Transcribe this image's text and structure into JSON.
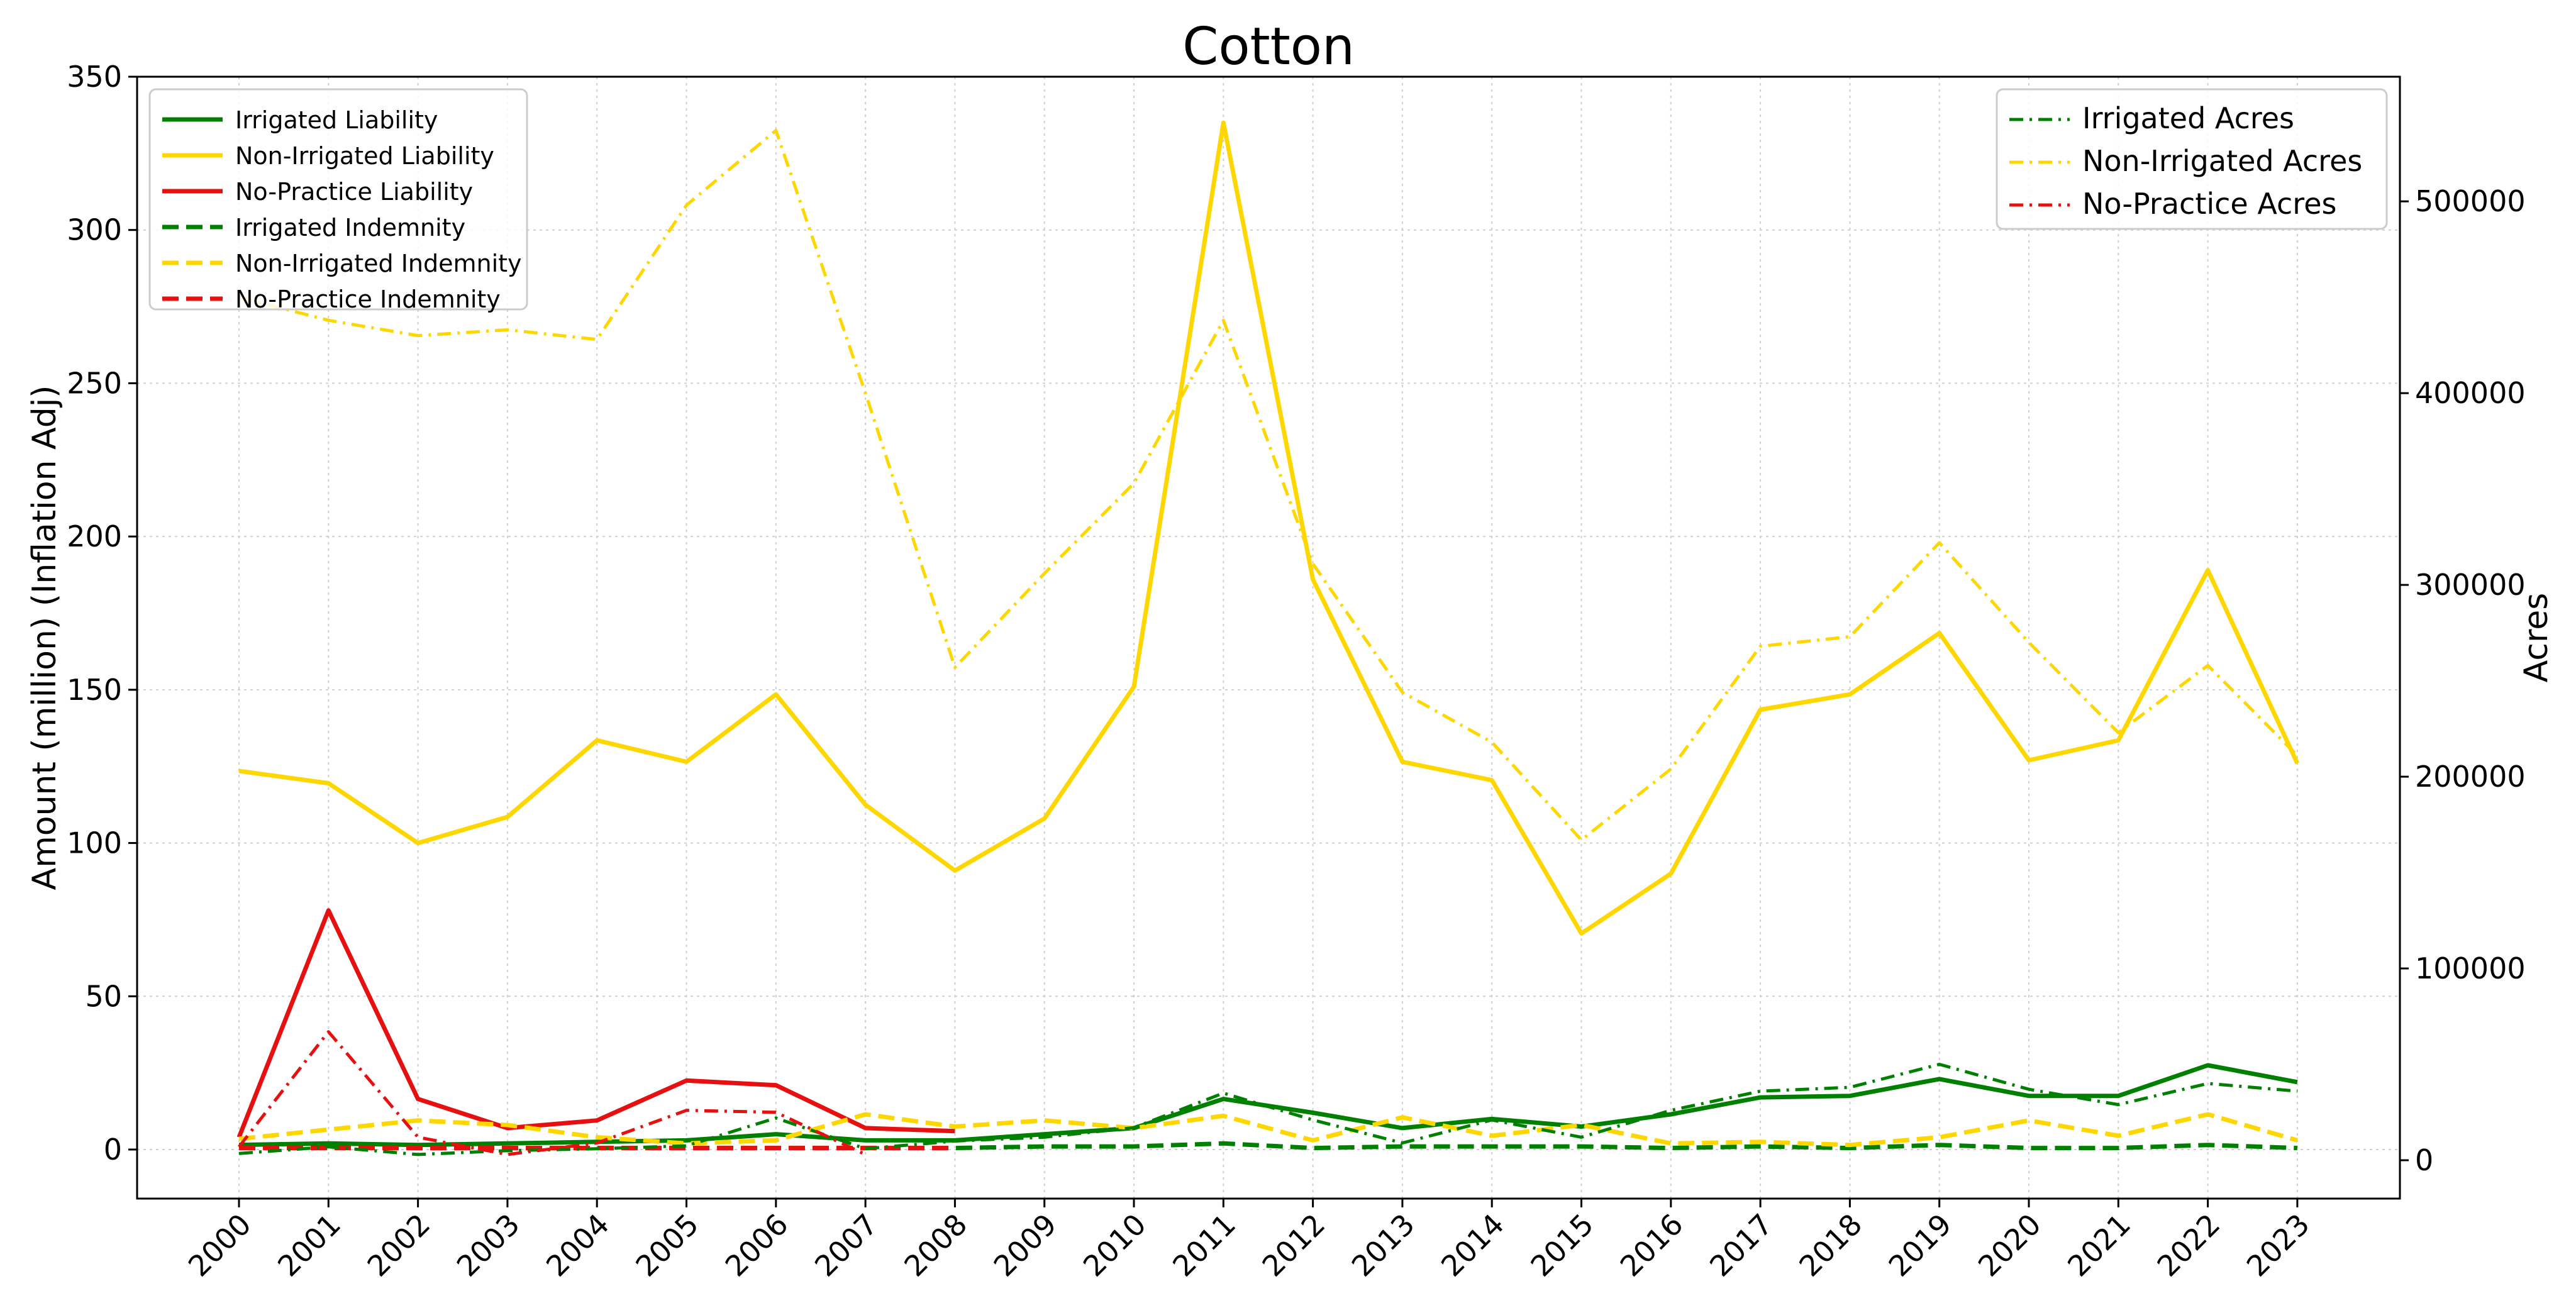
{
  "chart_data": {
    "type": "line",
    "title": "Cotton",
    "ylabel": "Amount (million) (Inflation Adj)",
    "y2label": "Acres",
    "x": [
      "2000",
      "2001",
      "2002",
      "2003",
      "2004",
      "2005",
      "2006",
      "2007",
      "2008",
      "2009",
      "2010",
      "2011",
      "2012",
      "2013",
      "2014",
      "2015",
      "2016",
      "2017",
      "2018",
      "2019",
      "2020",
      "2021",
      "2022",
      "2023"
    ],
    "ylim": [
      -16,
      350
    ],
    "y2lim": [
      -20000,
      565000
    ],
    "yticks": [
      0,
      50,
      100,
      150,
      200,
      250,
      300,
      350
    ],
    "y2ticks": [
      0,
      100000,
      200000,
      300000,
      400000,
      500000
    ],
    "grid": true,
    "legend_left_placement": "top-left",
    "legend_right_placement": "top-right",
    "colors": {
      "irrigated": "#008000",
      "non_irrigated": "#ffd700",
      "no_practice": "#e61010"
    },
    "series": [
      {
        "name": "Irrigated Liability",
        "axis": "left",
        "style": "solid",
        "color": "#008000",
        "values": [
          1.5,
          2,
          1.5,
          2,
          2.5,
          3,
          5,
          3,
          3,
          5,
          7,
          16.5,
          12,
          7,
          10,
          7.5,
          11.5,
          17,
          17.5,
          23,
          17.5,
          17.5,
          27.5,
          22
        ]
      },
      {
        "name": "Non-Irrigated Liability",
        "axis": "left",
        "style": "solid",
        "color": "#ffd700",
        "values": [
          123.5,
          119.5,
          100,
          108.5,
          133.5,
          126.5,
          148.5,
          112.5,
          91,
          108,
          151,
          335,
          186,
          126.5,
          120.5,
          70.5,
          90,
          143.5,
          148.5,
          168.5,
          127,
          133.5,
          189,
          126
        ]
      },
      {
        "name": "No-Practice Liability",
        "axis": "left",
        "style": "solid",
        "color": "#e61010",
        "values": [
          4,
          78,
          16.5,
          7,
          9.5,
          22.5,
          21,
          7,
          6,
          null,
          null,
          null,
          null,
          null,
          null,
          null,
          null,
          null,
          null,
          null,
          null,
          null,
          null,
          null
        ]
      },
      {
        "name": "Irrigated Indemnity",
        "axis": "left",
        "style": "dashed",
        "color": "#008000",
        "values": [
          0.5,
          1,
          0.5,
          0.5,
          0.5,
          0.5,
          0.5,
          0.5,
          0.5,
          1,
          1,
          2,
          0.5,
          1,
          1,
          1,
          0.5,
          1,
          0.5,
          1.5,
          0.5,
          0.5,
          1.5,
          0.5
        ]
      },
      {
        "name": "Non-Irrigated Indemnity",
        "axis": "left",
        "style": "dashed",
        "color": "#ffd700",
        "values": [
          3.5,
          6.5,
          9.5,
          8,
          4,
          2,
          3,
          11.5,
          7.5,
          9.5,
          7,
          11,
          3,
          10.5,
          4.5,
          8,
          2,
          2.5,
          1.5,
          4,
          9.5,
          4.5,
          11.5,
          3
        ]
      },
      {
        "name": "No-Practice Indemnity",
        "axis": "left",
        "style": "dashed",
        "color": "#e61010",
        "values": [
          0.5,
          0.5,
          0.5,
          0.5,
          0.5,
          0.5,
          0.5,
          0.5,
          0.5,
          null,
          null,
          null,
          null,
          null,
          null,
          null,
          null,
          null,
          null,
          null,
          null,
          null,
          null,
          null
        ]
      },
      {
        "name": "Irrigated Acres",
        "axis": "right",
        "style": "dashdot",
        "color": "#008000",
        "values": [
          3500,
          7000,
          3000,
          5000,
          6000,
          7500,
          22000,
          6000,
          10000,
          12000,
          17000,
          35000,
          21000,
          9000,
          21000,
          12000,
          26000,
          36000,
          38000,
          50000,
          37000,
          29000,
          40000,
          36000
        ]
      },
      {
        "name": "Non-Irrigated Acres",
        "axis": "right",
        "style": "dashdot",
        "color": "#ffd700",
        "values": [
          450000,
          438000,
          430000,
          433000,
          428000,
          498000,
          537000,
          400000,
          257000,
          306000,
          353000,
          438000,
          311000,
          244000,
          218000,
          167000,
          204000,
          268000,
          273000,
          322000,
          270000,
          223000,
          258000,
          211000
        ]
      },
      {
        "name": "No-Practice Acres",
        "axis": "right",
        "style": "dashdot",
        "color": "#e61010",
        "values": [
          7000,
          67000,
          12000,
          3000,
          9000,
          26000,
          25000,
          3000,
          null,
          null,
          null,
          null,
          null,
          null,
          null,
          null,
          null,
          null,
          null,
          null,
          null,
          null,
          null,
          null
        ]
      }
    ]
  }
}
